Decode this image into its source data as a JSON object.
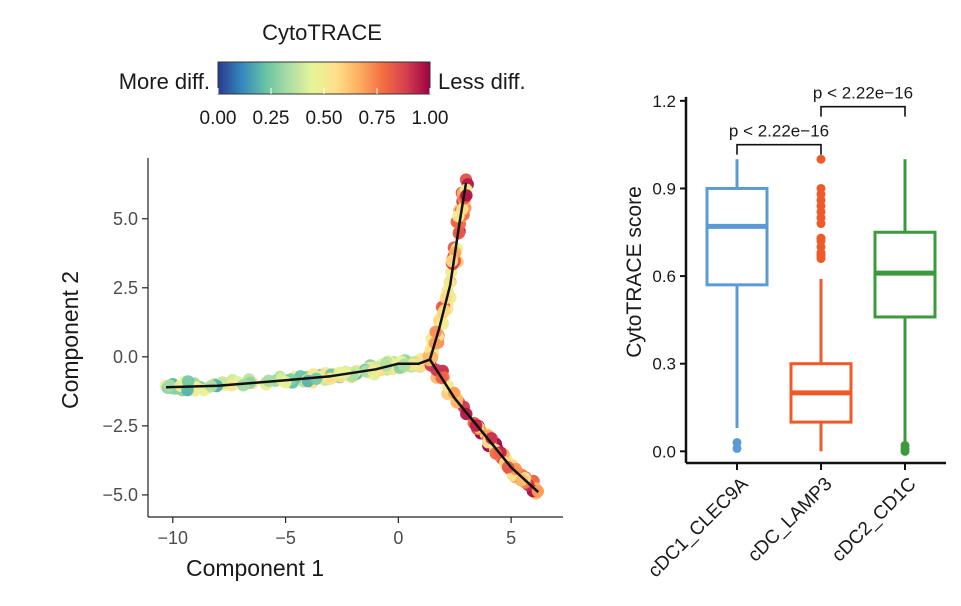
{
  "colorbar": {
    "title": "CytoTRACE",
    "left_label": "More diff.",
    "right_label": "Less diff.",
    "ticks": [
      "0.00",
      "0.25",
      "0.50",
      "0.75",
      "1.00"
    ],
    "stops": [
      "#2b3990",
      "#3288bd",
      "#66c2a5",
      "#abdda4",
      "#e6f598",
      "#fee08b",
      "#fdae61",
      "#f46d43",
      "#d53e4f",
      "#9e0142"
    ]
  },
  "chart_data": [
    {
      "type": "scatter",
      "xlabel": "Component 1",
      "ylabel": "Component 2",
      "xlim": [
        -11.1,
        7.3
      ],
      "ylim": [
        -5.8,
        7.2
      ],
      "x_ticks": [
        -10,
        -5,
        0,
        5
      ],
      "x_tick_labels": [
        "−10",
        "−5",
        "0",
        "5"
      ],
      "y_ticks": [
        -5.0,
        -2.5,
        0.0,
        2.5,
        5.0
      ],
      "y_tick_labels": [
        "−5.0",
        "−2.5",
        "0.0",
        "2.5",
        "5.0"
      ],
      "trajectory": [
        {
          "x": [
            -10.3,
            -8,
            -5,
            -3,
            -1,
            0,
            0.9,
            1.4
          ],
          "y": [
            -1.1,
            -1.05,
            -0.85,
            -0.7,
            -0.45,
            -0.25,
            -0.25,
            -0.1
          ]
        },
        {
          "x": [
            1.4,
            1.8,
            2.3,
            2.7,
            3.0
          ],
          "y": [
            -0.1,
            1.0,
            2.6,
            4.8,
            6.3
          ]
        },
        {
          "x": [
            1.4,
            2.5,
            4,
            5,
            6.2
          ],
          "y": [
            -0.1,
            -1.5,
            -3.0,
            -4.0,
            -4.9
          ]
        }
      ],
      "color_scale": "CytoTRACE 0-1"
    },
    {
      "type": "box",
      "ylabel": "CytoTRACE score",
      "categories": [
        "cDC1_CLEC9A",
        "cDC_LAMP3",
        "cDC2_CD1C"
      ],
      "colors": [
        "#5b9bd5",
        "#f05a28",
        "#3c9a3c"
      ],
      "ylim": [
        -0.04,
        1.22
      ],
      "y_ticks": [
        0.0,
        0.3,
        0.6,
        0.9,
        1.2
      ],
      "y_tick_labels": [
        "0.0",
        "0.3",
        "0.6",
        "0.9",
        "1.2"
      ],
      "boxes": [
        {
          "whisker_low": 0.08,
          "q1": 0.57,
          "median": 0.77,
          "q3": 0.9,
          "whisker_high": 1.0,
          "outliers": [
            0.01,
            0.03
          ]
        },
        {
          "whisker_low": 0.0,
          "q1": 0.1,
          "median": 0.2,
          "q3": 0.3,
          "whisker_high": 0.59,
          "outliers": [
            0.66,
            0.67,
            0.68,
            0.7,
            0.72,
            0.73,
            0.78,
            0.8,
            0.82,
            0.84,
            0.86,
            0.88,
            0.9,
            1.0
          ]
        },
        {
          "whisker_low": 0.0,
          "q1": 0.46,
          "median": 0.61,
          "q3": 0.75,
          "whisker_high": 1.0,
          "outliers": [
            0.0,
            0.01,
            0.02
          ]
        }
      ],
      "comparisons": [
        {
          "from": 0,
          "to": 1,
          "label": "p < 2.22e−16",
          "y": 1.05
        },
        {
          "from": 1,
          "to": 2,
          "label": "p < 2.22e−16",
          "y": 1.18
        }
      ]
    }
  ]
}
